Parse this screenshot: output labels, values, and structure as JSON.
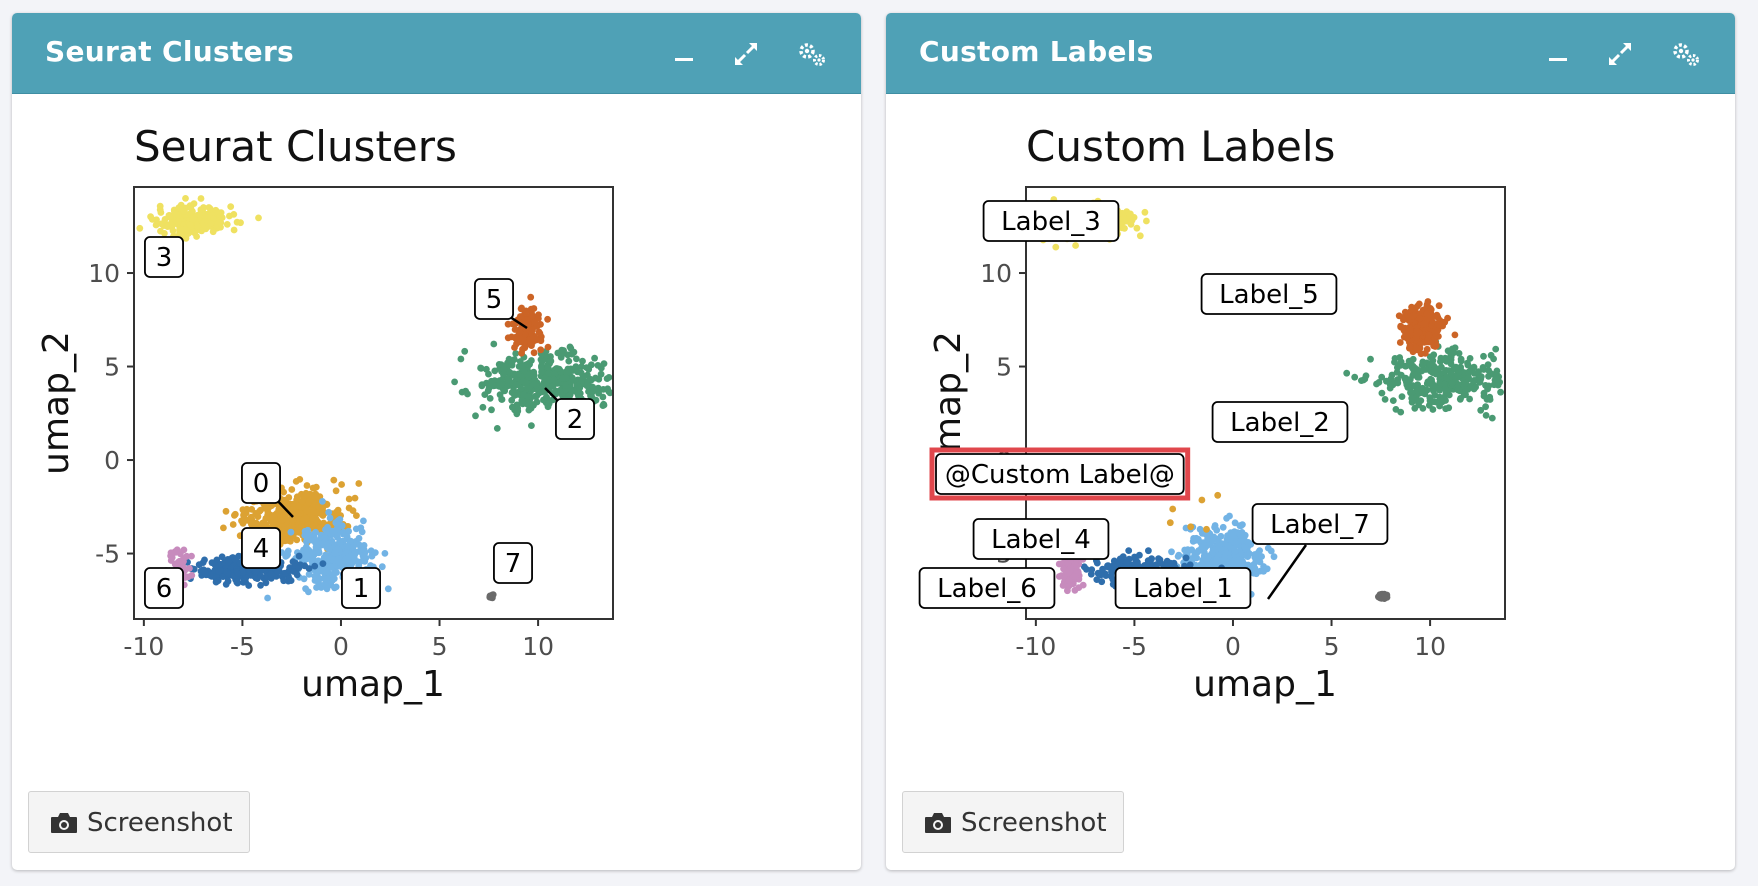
{
  "colors": {
    "header": "#4fa1b6",
    "highlight": "#e0474c",
    "cluster_0": "#dca233",
    "cluster_1": "#72b3e5",
    "cluster_2": "#4a9a73",
    "cluster_3": "#efe161",
    "cluster_4": "#2f6eac",
    "cluster_5": "#cc6426",
    "cluster_6": "#c78bbd",
    "cluster_7": "#6a6a6a"
  },
  "icons": [
    "minimize-icon",
    "expand-icon",
    "gears-icon",
    "camera-icon"
  ],
  "panels": [
    {
      "box_title": "Seurat Clusters",
      "screenshot_label": "Screenshot",
      "plot": {
        "title": "Seurat Clusters",
        "xlabel": "umap_1",
        "ylabel": "umap_2",
        "x_ticks": [
          "-10",
          "-5",
          "0",
          "5",
          "10"
        ],
        "y_ticks": [
          "10",
          "5",
          "0",
          "-5"
        ],
        "labels": [
          "0",
          "1",
          "2",
          "3",
          "4",
          "5",
          "6",
          "7"
        ]
      }
    },
    {
      "box_title": "Custom Labels",
      "screenshot_label": "Screenshot",
      "plot": {
        "title": "Custom Labels",
        "xlabel": "umap_1",
        "ylabel": "umap_2",
        "x_ticks": [
          "-10",
          "-5",
          "0",
          "5",
          "10"
        ],
        "y_ticks": [
          "10",
          "5",
          "0",
          "-5"
        ],
        "labels": [
          "Label_1",
          "Label_2",
          "Label_3",
          "Label_4",
          "Label_5",
          "Label_6",
          "Label_7",
          "@Custom Label@"
        ]
      }
    }
  ],
  "chart_data": [
    {
      "type": "scatter",
      "title": "Seurat Clusters",
      "xlabel": "umap_1",
      "ylabel": "umap_2",
      "xlim": [
        -10.5,
        13.8
      ],
      "ylim": [
        -8.5,
        14.6
      ],
      "grid": false,
      "legend": "none",
      "series": [
        {
          "name": "0",
          "center": [
            -2.5,
            -3.0
          ],
          "spread": [
            2.8,
            1.6
          ]
        },
        {
          "name": "1",
          "center": [
            -0.5,
            -5.2
          ],
          "spread": [
            2.2,
            1.8
          ]
        },
        {
          "name": "2",
          "center": [
            10.5,
            4.2
          ],
          "spread": [
            3.8,
            1.6
          ]
        },
        {
          "name": "3",
          "center": [
            -7.5,
            12.8
          ],
          "spread": [
            2.2,
            0.9
          ]
        },
        {
          "name": "4",
          "center": [
            -4.8,
            -5.9
          ],
          "spread": [
            2.8,
            0.8
          ]
        },
        {
          "name": "5",
          "center": [
            9.5,
            7.0
          ],
          "spread": [
            1.0,
            1.3
          ]
        },
        {
          "name": "6",
          "center": [
            -8.2,
            -5.8
          ],
          "spread": [
            0.6,
            1.2
          ]
        },
        {
          "name": "7",
          "center": [
            7.6,
            -7.3
          ],
          "spread": [
            0.2,
            0.15
          ]
        }
      ]
    },
    {
      "type": "scatter",
      "title": "Custom Labels",
      "xlabel": "umap_1",
      "ylabel": "umap_2",
      "xlim": [
        -10.5,
        13.8
      ],
      "ylim": [
        -8.5,
        14.6
      ],
      "grid": false,
      "legend": "none",
      "series": [
        {
          "name": "Label_1",
          "center": [
            -0.5,
            -5.2
          ],
          "spread": [
            2.2,
            1.8
          ]
        },
        {
          "name": "Label_2",
          "center": [
            10.5,
            4.2
          ],
          "spread": [
            3.8,
            1.6
          ]
        },
        {
          "name": "Label_3",
          "center": [
            -7.5,
            12.8
          ],
          "spread": [
            2.2,
            0.9
          ]
        },
        {
          "name": "Label_4",
          "center": [
            -4.8,
            -5.9
          ],
          "spread": [
            2.8,
            0.8
          ]
        },
        {
          "name": "Label_5",
          "center": [
            9.5,
            7.0
          ],
          "spread": [
            1.0,
            1.3
          ]
        },
        {
          "name": "Label_6",
          "center": [
            -8.2,
            -5.8
          ],
          "spread": [
            0.6,
            1.2
          ]
        },
        {
          "name": "Label_7",
          "center": [
            7.6,
            -7.3
          ],
          "spread": [
            0.2,
            0.15
          ]
        },
        {
          "name": "@Custom Label@",
          "center": [
            -2.5,
            -3.0
          ],
          "spread": [
            2.8,
            1.6
          ]
        }
      ]
    }
  ]
}
